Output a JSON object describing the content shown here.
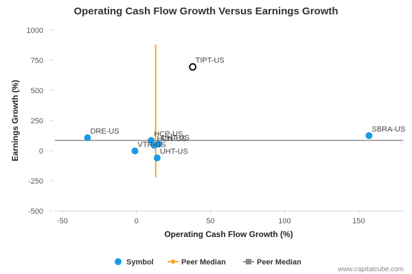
{
  "chart_data": {
    "type": "scatter",
    "title": "Operating Cash Flow Growth Versus Earnings Growth",
    "xlabel": "Operating Cash Flow Growth (%)",
    "ylabel": "Earnings Growth (%)",
    "xlim": [
      -55,
      180
    ],
    "ylim": [
      -500,
      1000
    ],
    "x_ticks": [
      -50,
      0,
      50,
      100,
      150
    ],
    "y_ticks": [
      1000,
      750,
      500,
      250,
      0,
      -250,
      -500
    ],
    "grid": false,
    "legend_position": "bottom",
    "points": [
      {
        "label": "DRE-US",
        "x": -33,
        "y": 108,
        "style": "peer"
      },
      {
        "label": "HCP-US",
        "x": 10,
        "y": 85,
        "style": "peer"
      },
      {
        "label": "VTR-US",
        "x": -1,
        "y": -2,
        "style": "peer"
      },
      {
        "label": "HCN-US",
        "x": 12,
        "y": 45,
        "style": "peer"
      },
      {
        "label": "UHT-US",
        "x": 15,
        "y": 55,
        "style": "peer"
      },
      {
        "label": "UHT-US",
        "x": 14,
        "y": -60,
        "style": "peer"
      },
      {
        "label": "SBRA-US",
        "x": 157,
        "y": 125,
        "style": "peer"
      },
      {
        "label": "TIPT-US",
        "x": 38,
        "y": 695,
        "style": "target"
      }
    ],
    "peer_median_x": 13,
    "peer_median_x_yrange": [
      -220,
      880
    ],
    "peer_median_y": 85,
    "legend": [
      {
        "label": "Symbol",
        "color": "#1a9be6"
      },
      {
        "label": "Peer Median",
        "color": "#f5a623"
      },
      {
        "label": "Peer Median",
        "color": "#8a8a8a"
      }
    ]
  },
  "colors": {
    "point": "#1a9be6",
    "target_stroke": "#111111",
    "median_x_line": "#f5a623",
    "median_y_line": "#8a8a8a"
  },
  "credit": "www.capitalcube.com"
}
